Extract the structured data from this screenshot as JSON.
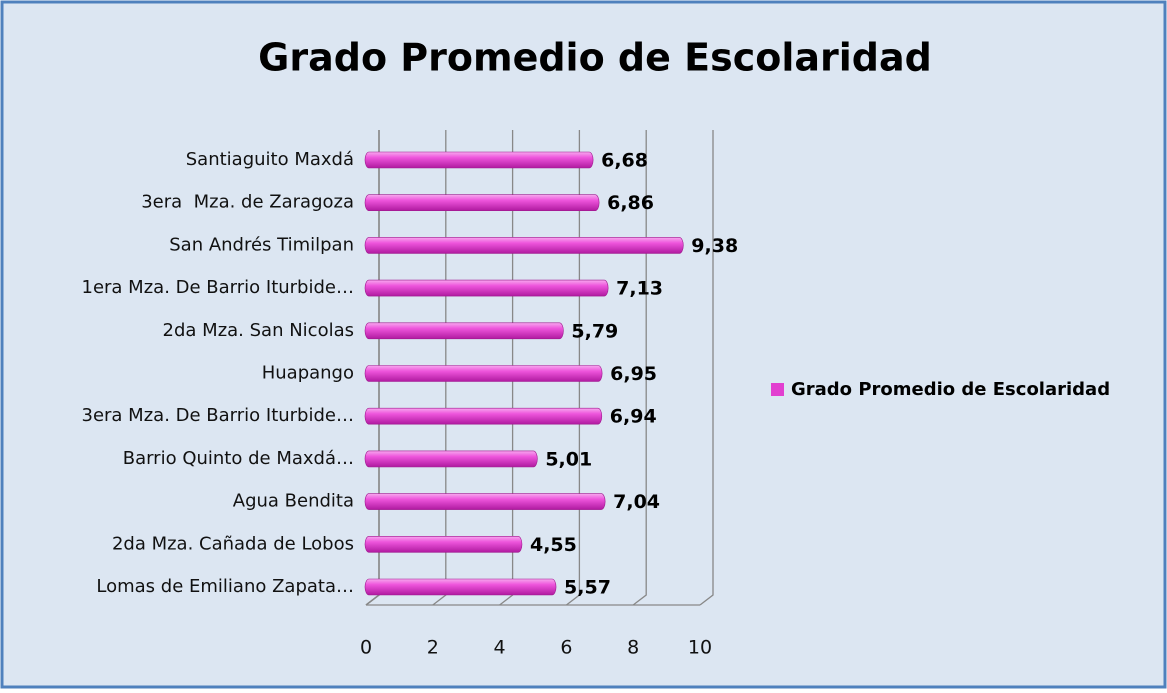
{
  "chart_data": {
    "type": "bar",
    "orientation": "horizontal",
    "title": "Grado Promedio de Escolaridad",
    "categories": [
      "Santiaguito Maxdá",
      "3era  Mza. de Zaragoza",
      "San Andrés Timilpan",
      "1era Mza. De Barrio Iturbide…",
      "2da Mza. San Nicolas",
      "Huapango",
      "3era Mza. De Barrio Iturbide…",
      "Barrio Quinto de Maxdá…",
      "Agua Bendita",
      "2da Mza. Cañada de Lobos",
      "Lomas de Emiliano Zapata…"
    ],
    "series": [
      {
        "name": "Grado Promedio de Escolaridad",
        "color": "#e23fd0",
        "values": [
          6.68,
          6.86,
          9.38,
          7.13,
          5.79,
          6.95,
          6.94,
          5.01,
          7.04,
          4.55,
          5.57
        ],
        "value_labels": [
          "6,68",
          "6,86",
          "9,38",
          "7,13",
          "5,79",
          "6,95",
          "6,94",
          "5,01",
          "7,04",
          "4,55",
          "5,57"
        ]
      }
    ],
    "xlim": [
      0,
      10
    ],
    "xticks": [
      0,
      2,
      4,
      6,
      8,
      10
    ],
    "grid": true,
    "legend": "right"
  }
}
